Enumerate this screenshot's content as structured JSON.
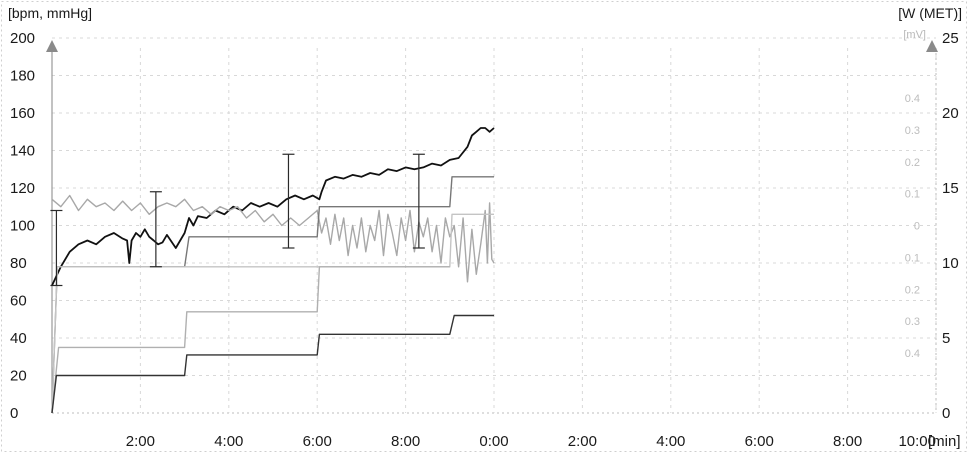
{
  "chart_data": {
    "type": "line",
    "left_axis": {
      "label": "[bpm, mmHg]",
      "ticks": [
        0,
        20,
        40,
        60,
        80,
        100,
        120,
        140,
        160,
        180,
        200
      ],
      "ylim": [
        0,
        200
      ]
    },
    "right_axis": {
      "label": "[W (MET)]",
      "ticks": [
        0,
        5,
        10,
        15,
        20,
        25
      ],
      "ylim": [
        0,
        25
      ]
    },
    "mv_axis": {
      "label": "[mV]",
      "ticks": [
        {
          "label": "0.4",
          "value": 0.4
        },
        {
          "label": "0.3",
          "value": 0.3
        },
        {
          "label": "0.2",
          "value": 0.2
        },
        {
          "label": "0.1",
          "value": 0.1
        },
        {
          "label": "0",
          "value": 0
        },
        {
          "label": "0.1",
          "value": -0.1
        },
        {
          "label": "0.2",
          "value": -0.2
        },
        {
          "label": "0.3",
          "value": -0.3
        },
        {
          "label": "0.4",
          "value": -0.4
        }
      ],
      "ylim": [
        -0.5,
        0.5
      ]
    },
    "x_axis": {
      "unit_label": "[min]",
      "ticks": [
        {
          "label": "2:00",
          "value": 2
        },
        {
          "label": "4:00",
          "value": 4
        },
        {
          "label": "6:00",
          "value": 6
        },
        {
          "label": "8:00",
          "value": 8
        },
        {
          "label": "0:00",
          "value": 10
        },
        {
          "label": "2:00",
          "value": 12
        },
        {
          "label": "4:00",
          "value": 14
        },
        {
          "label": "6:00",
          "value": 16
        },
        {
          "label": "8:00",
          "value": 18
        },
        {
          "label": "10:00",
          "value": 20
        }
      ],
      "xlim": [
        0,
        20
      ]
    },
    "grid": true,
    "series": [
      {
        "axis": "left",
        "color": "#111111",
        "points": [
          [
            0,
            68
          ],
          [
            0.2,
            78
          ],
          [
            0.4,
            86
          ],
          [
            0.6,
            90
          ],
          [
            0.8,
            92
          ],
          [
            1.0,
            90
          ],
          [
            1.2,
            94
          ],
          [
            1.4,
            96
          ],
          [
            1.6,
            93
          ],
          [
            1.7,
            92
          ],
          [
            1.75,
            80
          ],
          [
            1.8,
            92
          ],
          [
            1.9,
            96
          ],
          [
            2.0,
            94
          ],
          [
            2.1,
            98
          ],
          [
            2.2,
            94
          ],
          [
            2.3,
            92
          ],
          [
            2.4,
            90
          ],
          [
            2.5,
            91
          ],
          [
            2.6,
            95
          ],
          [
            2.8,
            88
          ],
          [
            2.9,
            92
          ],
          [
            3.0,
            96
          ],
          [
            3.1,
            104
          ],
          [
            3.2,
            100
          ],
          [
            3.3,
            105
          ],
          [
            3.5,
            104
          ],
          [
            3.7,
            108
          ],
          [
            3.9,
            106
          ],
          [
            4.1,
            110
          ],
          [
            4.3,
            108
          ],
          [
            4.5,
            112
          ],
          [
            4.7,
            110
          ],
          [
            4.9,
            112
          ],
          [
            5.1,
            110
          ],
          [
            5.3,
            114
          ],
          [
            5.5,
            116
          ],
          [
            5.7,
            114
          ],
          [
            5.9,
            116
          ],
          [
            6.05,
            114
          ],
          [
            6.1,
            118
          ],
          [
            6.2,
            124
          ],
          [
            6.4,
            126
          ],
          [
            6.6,
            125
          ],
          [
            6.8,
            127
          ],
          [
            7.0,
            126
          ],
          [
            7.2,
            128
          ],
          [
            7.4,
            127
          ],
          [
            7.6,
            130
          ],
          [
            7.8,
            129
          ],
          [
            8.0,
            131
          ],
          [
            8.2,
            130
          ],
          [
            8.4,
            131
          ],
          [
            8.6,
            133
          ],
          [
            8.8,
            132
          ],
          [
            9.0,
            135
          ],
          [
            9.2,
            136
          ],
          [
            9.4,
            142
          ],
          [
            9.5,
            148
          ],
          [
            9.6,
            150
          ],
          [
            9.7,
            152
          ],
          [
            9.8,
            152
          ],
          [
            9.9,
            150
          ],
          [
            10.0,
            152
          ]
        ]
      },
      {
        "axis": "left",
        "color": "#a8a8a8",
        "points": [
          [
            0,
            114
          ],
          [
            0.2,
            110
          ],
          [
            0.4,
            116
          ],
          [
            0.6,
            108
          ],
          [
            0.8,
            114
          ],
          [
            1.0,
            110
          ],
          [
            1.2,
            112
          ],
          [
            1.4,
            108
          ],
          [
            1.6,
            113
          ],
          [
            1.8,
            108
          ],
          [
            2.0,
            112
          ],
          [
            2.2,
            106
          ],
          [
            2.4,
            110
          ],
          [
            2.6,
            112
          ],
          [
            2.8,
            110
          ],
          [
            3.0,
            114
          ],
          [
            3.2,
            108
          ],
          [
            3.4,
            110
          ],
          [
            3.6,
            106
          ],
          [
            3.8,
            110
          ],
          [
            4.0,
            108
          ],
          [
            4.2,
            110
          ],
          [
            4.4,
            104
          ],
          [
            4.6,
            108
          ],
          [
            4.8,
            102
          ],
          [
            5.0,
            106
          ],
          [
            5.2,
            100
          ],
          [
            5.4,
            104
          ],
          [
            5.6,
            100
          ],
          [
            5.8,
            104
          ],
          [
            6.0,
            108
          ],
          [
            6.1,
            96
          ],
          [
            6.2,
            104
          ],
          [
            6.3,
            90
          ],
          [
            6.4,
            106
          ],
          [
            6.5,
            92
          ],
          [
            6.6,
            104
          ],
          [
            6.7,
            84
          ],
          [
            6.8,
            100
          ],
          [
            6.9,
            88
          ],
          [
            7.0,
            104
          ],
          [
            7.1,
            86
          ],
          [
            7.2,
            100
          ],
          [
            7.3,
            92
          ],
          [
            7.4,
            108
          ],
          [
            7.5,
            84
          ],
          [
            7.6,
            106
          ],
          [
            7.7,
            96
          ],
          [
            7.8,
            84
          ],
          [
            7.9,
            104
          ],
          [
            8.0,
            92
          ],
          [
            8.1,
            108
          ],
          [
            8.2,
            86
          ],
          [
            8.3,
            102
          ],
          [
            8.4,
            94
          ],
          [
            8.5,
            104
          ],
          [
            8.6,
            86
          ],
          [
            8.7,
            100
          ],
          [
            8.8,
            80
          ],
          [
            8.9,
            104
          ],
          [
            9.0,
            94
          ],
          [
            9.1,
            100
          ],
          [
            9.2,
            78
          ],
          [
            9.3,
            104
          ],
          [
            9.4,
            70
          ],
          [
            9.5,
            98
          ],
          [
            9.6,
            74
          ],
          [
            9.7,
            90
          ],
          [
            9.8,
            108
          ],
          [
            9.85,
            80
          ],
          [
            9.9,
            112
          ],
          [
            9.95,
            82
          ],
          [
            10.0,
            80
          ]
        ]
      },
      {
        "axis": "left",
        "color": "#777777",
        "points": [
          [
            0,
            0
          ],
          [
            0.12,
            78
          ],
          [
            3.0,
            78
          ],
          [
            3.1,
            94
          ],
          [
            6.0,
            94
          ],
          [
            6.05,
            110
          ],
          [
            9.0,
            110
          ],
          [
            9.05,
            126
          ],
          [
            10.0,
            126
          ]
        ]
      },
      {
        "axis": "left",
        "color": "#c4c4c4",
        "points": [
          [
            0,
            0
          ],
          [
            0.12,
            78
          ],
          [
            9.0,
            78
          ],
          [
            9.05,
            106
          ],
          [
            10.0,
            106
          ]
        ]
      },
      {
        "axis": "left",
        "color": "#b0b0b0",
        "points": [
          [
            0,
            0
          ],
          [
            0.15,
            35
          ],
          [
            3.0,
            35
          ],
          [
            3.05,
            54
          ],
          [
            6.0,
            54
          ],
          [
            6.05,
            78
          ],
          [
            9.0,
            78
          ]
        ]
      },
      {
        "axis": "left",
        "color": "#333333",
        "points": [
          [
            0,
            0
          ],
          [
            0.1,
            20
          ],
          [
            3.0,
            20
          ],
          [
            3.05,
            31
          ],
          [
            6.0,
            31
          ],
          [
            6.05,
            42
          ],
          [
            9.0,
            42
          ],
          [
            9.1,
            52
          ],
          [
            10.0,
            52
          ]
        ]
      }
    ],
    "bp_bars": [
      {
        "x": 0.1,
        "sys": 108,
        "dia": 68
      },
      {
        "x": 2.35,
        "sys": 118,
        "dia": 78
      },
      {
        "x": 5.35,
        "sys": 138,
        "dia": 88
      },
      {
        "x": 8.3,
        "sys": 138,
        "dia": 88
      }
    ],
    "marker_color": "#8a8a8a",
    "grid_color": "#d8d8d8"
  }
}
